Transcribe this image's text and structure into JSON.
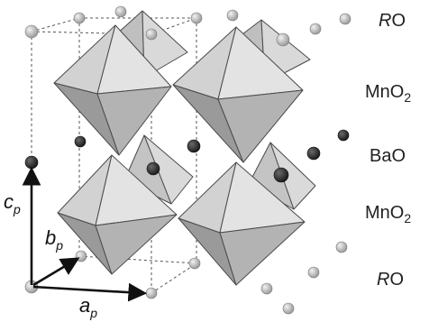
{
  "layer_labels": {
    "top_ro": {
      "prefix": "",
      "element": "R",
      "suffix": "O"
    },
    "upper_mno2": {
      "text": "MnO",
      "sub": "2"
    },
    "bao": {
      "text": "BaO"
    },
    "lower_mno2": {
      "text": "MnO",
      "sub": "2"
    },
    "bottom_ro": {
      "element": "R",
      "suffix": "O"
    }
  },
  "axes": {
    "c": {
      "main": "c",
      "sub": "p"
    },
    "b": {
      "main": "b",
      "sub": "p"
    },
    "a": {
      "main": "a",
      "sub": "p"
    }
  },
  "colors": {
    "octahedron_light": "#d4d4d4",
    "octahedron_mid": "#b4b4b4",
    "octahedron_dark": "#8e8e8e",
    "octahedron_edge": "#4a4a4a",
    "ro_atom": "#b9b9b9",
    "bao_atom": "#3a3a3a",
    "cell_line": "#555555",
    "arrow": "#111111"
  }
}
